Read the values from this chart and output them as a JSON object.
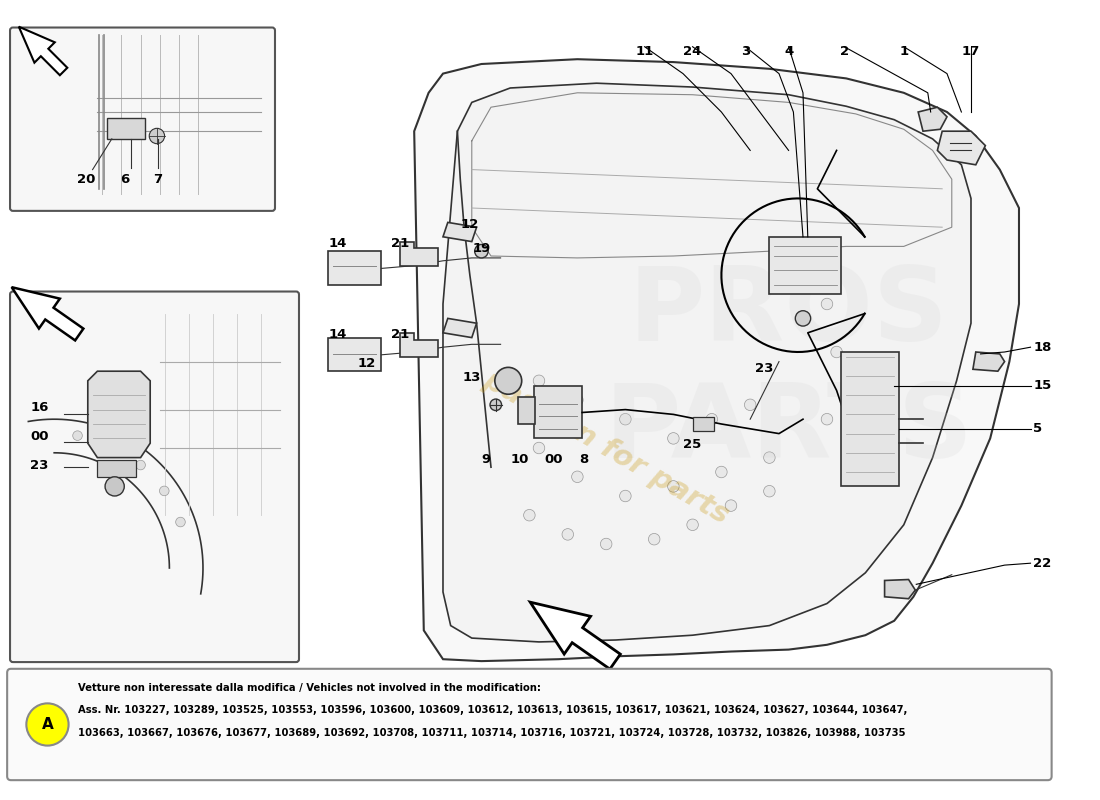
{
  "background_color": "#ffffff",
  "watermark_text": "passion for parts",
  "watermark_color": "#c8960a",
  "watermark_alpha": 0.3,
  "footnote_title": "Vetture non interessate dalla modifica / Vehicles not involved in the modification:",
  "footnote_line1": "Ass. Nr. 103227, 103289, 103525, 103553, 103596, 103600, 103609, 103612, 103613, 103615, 103617, 103621, 103624, 103627, 103644, 103647,",
  "footnote_line2": "103663, 103667, 103676, 103677, 103689, 103692, 103708, 103711, 103714, 103716, 103721, 103724, 103728, 103732, 103826, 103988, 103735",
  "label_fontsize": 9.5,
  "footnote_fontsize": 7.2
}
